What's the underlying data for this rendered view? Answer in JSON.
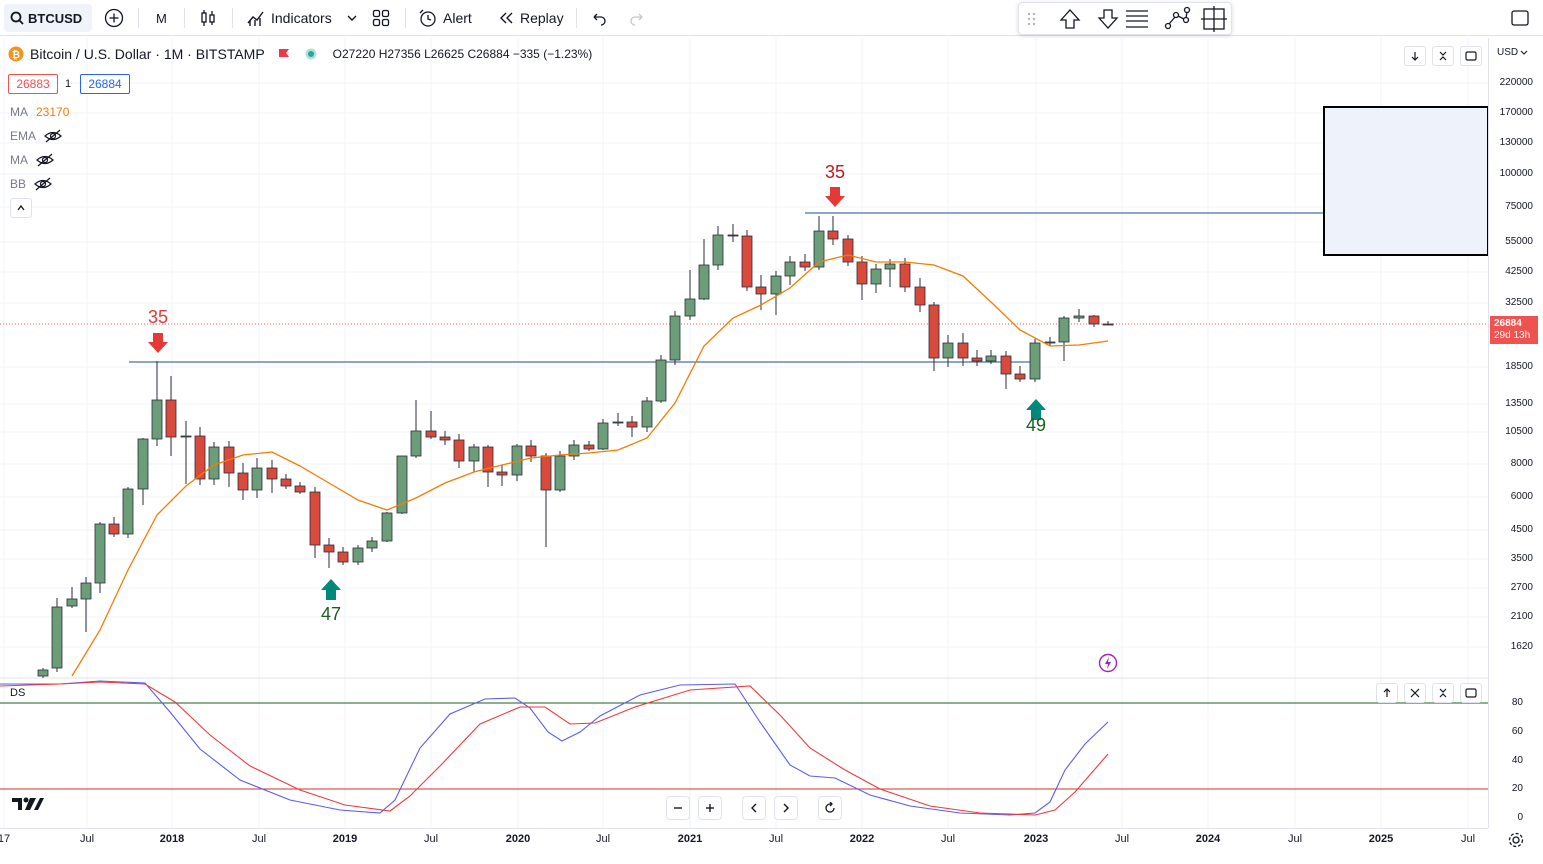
{
  "toolbar": {
    "symbol": "BTCUSD",
    "interval": "M",
    "indicators_label": "Indicators",
    "alert_label": "Alert",
    "replay_label": "Replay"
  },
  "legend": {
    "title": "Bitcoin / U.S. Dollar · 1M · BITSTAMP",
    "ohlc": "O27220 H27356 L26625 C26884 −335 (−1.23%)",
    "bid": "26883",
    "spread": "1",
    "ask": "26884"
  },
  "indicators": [
    {
      "name": "MA",
      "value": "23170",
      "color": "#f57c00"
    },
    {
      "name": "EMA",
      "value": ""
    },
    {
      "name": "MA",
      "value": ""
    },
    {
      "name": "BB",
      "value": ""
    }
  ],
  "currency": "USD",
  "price_axis": [
    "220000",
    "170000",
    "130000",
    "100000",
    "75000",
    "55000",
    "42500",
    "32500",
    "18500",
    "13500",
    "10500",
    "8000",
    "6000",
    "4500",
    "3500",
    "2700",
    "2100",
    "1620"
  ],
  "osc_axis": [
    "80",
    "60",
    "40",
    "20",
    "0"
  ],
  "time_axis": [
    {
      "label": "17",
      "year": false
    },
    {
      "label": "Jul",
      "year": false
    },
    {
      "label": "2018",
      "year": true
    },
    {
      "label": "Jul",
      "year": false
    },
    {
      "label": "2019",
      "year": true
    },
    {
      "label": "Jul",
      "year": false
    },
    {
      "label": "2020",
      "year": true
    },
    {
      "label": "Jul",
      "year": false
    },
    {
      "label": "2021",
      "year": true
    },
    {
      "label": "Jul",
      "year": false
    },
    {
      "label": "2022",
      "year": true
    },
    {
      "label": "Jul",
      "year": false
    },
    {
      "label": "2023",
      "year": true
    },
    {
      "label": "Jul",
      "year": false
    },
    {
      "label": "2024",
      "year": true
    },
    {
      "label": "Jul",
      "year": false
    },
    {
      "label": "2025",
      "year": true
    },
    {
      "label": "Jul",
      "year": false
    }
  ],
  "last_price": {
    "price": "26884",
    "countdown": "29d 13h"
  },
  "annotations": [
    {
      "text": "35",
      "direction": "down",
      "color": "#e53935"
    },
    {
      "text": "47",
      "direction": "up",
      "color": "#1b5e20"
    },
    {
      "text": "35",
      "direction": "down",
      "color": "#b71c1c"
    },
    {
      "text": "49",
      "direction": "up",
      "color": "#1b5e20"
    }
  ],
  "sub_pane": {
    "label": "DS"
  },
  "colors": {
    "up": "#6b9e78",
    "down": "#d9493c",
    "ma": "#f57c00",
    "k_line": "#5c5cf0",
    "d_line": "#ef3b3b",
    "level_line": "#1e4e8c"
  },
  "icons": [
    "search-icon",
    "plus-icon",
    "candles-icon",
    "indicators-icon",
    "layout-icon",
    "alert-icon",
    "replay-icon",
    "undo-icon",
    "redo-icon",
    "fullscreen-icon"
  ]
}
